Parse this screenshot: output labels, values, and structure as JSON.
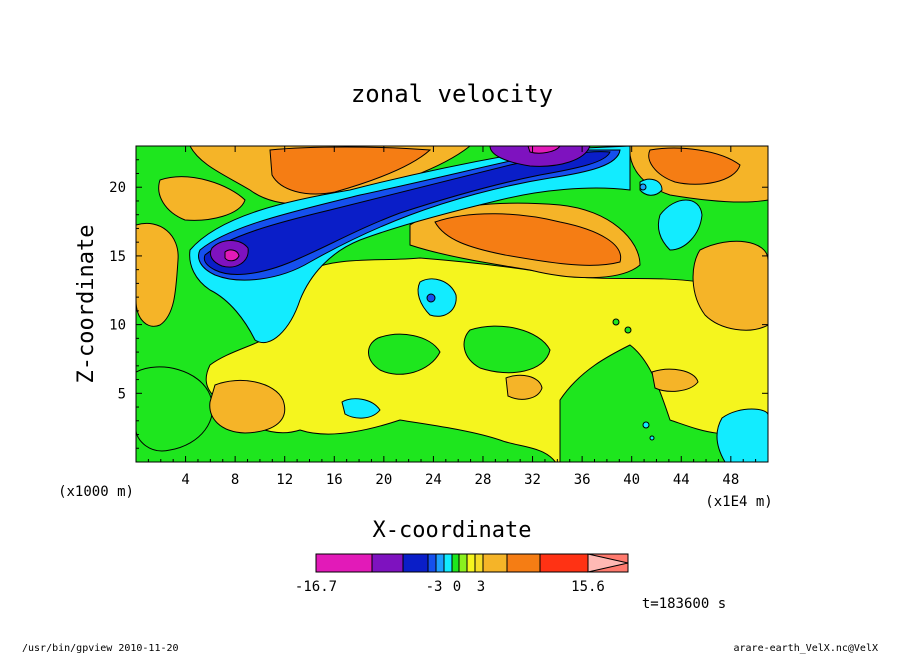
{
  "chart_data": {
    "type": "heatmap",
    "title": "zonal velocity",
    "xlabel": "X-coordinate",
    "ylabel": "Z-coordinate",
    "x_unit_left": "(x1000 m)",
    "x_unit_right": "(x1E4 m)",
    "xlim": [
      0,
      51
    ],
    "ylim": [
      0,
      23
    ],
    "x_ticks": [
      "4",
      "8",
      "12",
      "16",
      "20",
      "24",
      "28",
      "32",
      "36",
      "40",
      "44",
      "48"
    ],
    "y_ticks": [
      "5",
      "10",
      "15",
      "20"
    ],
    "colorbar": {
      "min_label": "-16.7",
      "max_label": "15.6",
      "tick_labels": [
        "-3",
        "0",
        "3"
      ],
      "colors": [
        "#e21ab8",
        "#7e12bf",
        "#0a1ec8",
        "#1550ee",
        "#1ea0ff",
        "#12ecff",
        "#1ee61e",
        "#8af01e",
        "#f5f51e",
        "#f5dc28",
        "#f5b428",
        "#f57d14",
        "#ff3214",
        "#ff7a6e",
        "#ffb9b4"
      ]
    },
    "time_label": "t=183600 s",
    "footer_left": "/usr/bin/gpview   2010-11-20",
    "footer_right": "arare-earth_VelX.nc@VelX"
  }
}
